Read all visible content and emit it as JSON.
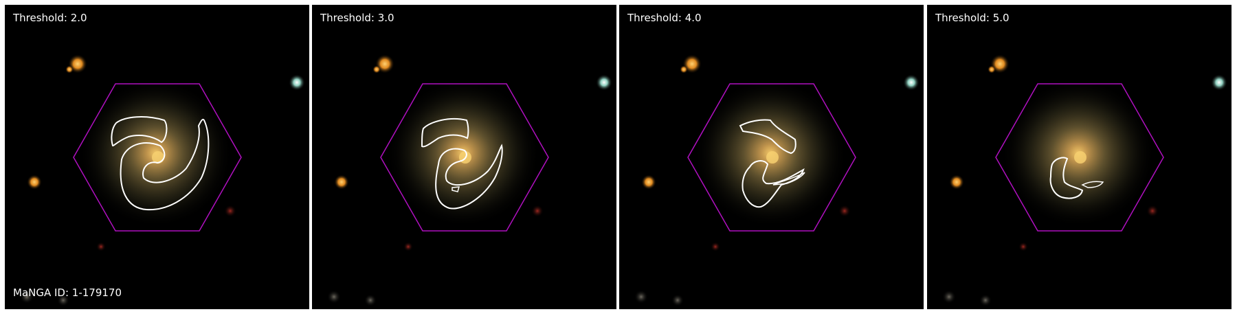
{
  "panels": [
    {
      "threshold_label": "Threshold: 2.0"
    },
    {
      "threshold_label": "Threshold: 3.0"
    },
    {
      "threshold_label": "Threshold: 4.0"
    },
    {
      "threshold_label": "Threshold: 5.0"
    }
  ],
  "galaxy_id_label": "MaNGA ID: 1-179170",
  "colors": {
    "background": "#000000",
    "hexagon": "#b010c0",
    "contour": "#ffffff",
    "galaxy_core": "#f0c060",
    "galaxy_halo": "#6a6a3a",
    "label_text": "#ffffff",
    "separator": "#ffffff"
  }
}
